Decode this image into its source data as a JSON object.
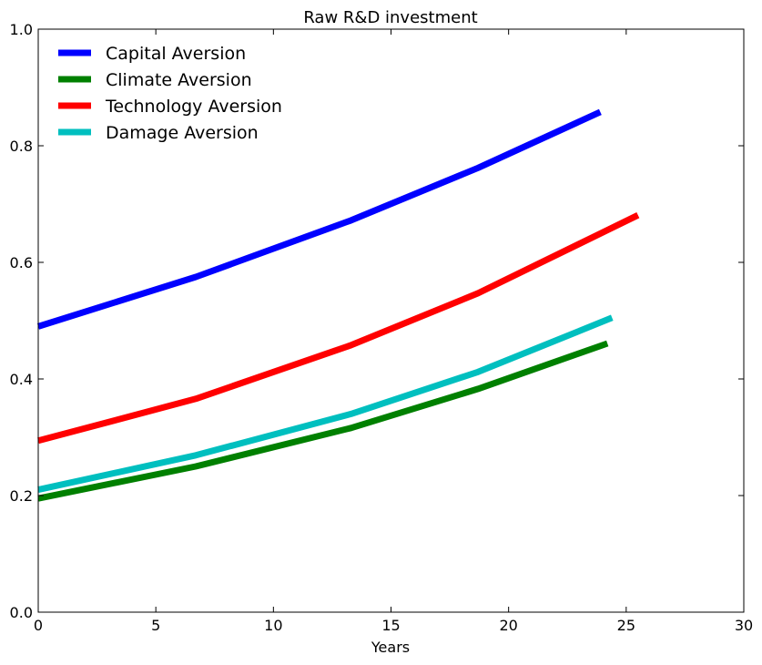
{
  "chart_data": {
    "type": "line",
    "title": "Raw R&D investment",
    "xlabel": "Years",
    "ylabel": "",
    "xlim": [
      0,
      30
    ],
    "ylim": [
      0.0,
      1.0
    ],
    "xticks": [
      "0",
      "5",
      "10",
      "15",
      "20",
      "25",
      "30"
    ],
    "yticks": [
      "0.0",
      "0.2",
      "0.4",
      "0.6",
      "0.8",
      "1.0"
    ],
    "grid": false,
    "legend_position": "top-left",
    "series": [
      {
        "name": "Capital Aversion",
        "color": "#0000ff",
        "x": [
          0,
          6.7,
          13.3,
          18.7,
          23.9
        ],
        "y": [
          0.49,
          0.575,
          0.672,
          0.762,
          0.858
        ]
      },
      {
        "name": "Climate Aversion",
        "color": "#008000",
        "x": [
          0,
          6.7,
          13.3,
          18.7,
          24.2
        ],
        "y": [
          0.195,
          0.25,
          0.316,
          0.383,
          0.461
        ]
      },
      {
        "name": "Technology Aversion",
        "color": "#ff0000",
        "x": [
          0,
          6.7,
          13.3,
          18.7,
          25.5
        ],
        "y": [
          0.294,
          0.366,
          0.458,
          0.547,
          0.681
        ]
      },
      {
        "name": "Damage Aversion",
        "color": "#00bfbf",
        "x": [
          0,
          6.7,
          13.3,
          18.7,
          24.4
        ],
        "y": [
          0.21,
          0.269,
          0.34,
          0.412,
          0.505
        ]
      }
    ]
  }
}
